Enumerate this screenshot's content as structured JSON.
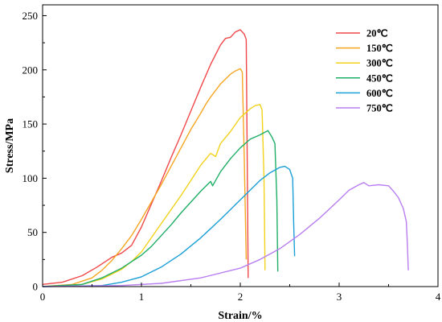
{
  "chart_data": {
    "type": "line",
    "title": "",
    "xlabel": "Strain/%",
    "ylabel": "Stress/MPa",
    "xlim": [
      0,
      4
    ],
    "ylim": [
      0,
      260
    ],
    "x_ticks": [
      0,
      1,
      2,
      3,
      4
    ],
    "x_tick_labels": [
      "0",
      "1",
      "2",
      "3",
      "4"
    ],
    "y_ticks": [
      0,
      50,
      100,
      150,
      200,
      250
    ],
    "y_tick_labels": [
      "0",
      "50",
      "100",
      "150",
      "200",
      "250"
    ],
    "grid": false,
    "legend_position": "top-right",
    "series": [
      {
        "name": "20℃",
        "color": "#f0484a",
        "x": [
          0,
          0.2,
          0.4,
          0.55,
          0.7,
          0.8,
          0.9,
          1.0,
          1.1,
          1.2,
          1.3,
          1.4,
          1.5,
          1.6,
          1.7,
          1.8,
          1.85,
          1.9,
          1.95,
          2.0,
          2.04,
          2.06,
          2.07,
          2.08
        ],
        "values": [
          2,
          4,
          10,
          18,
          27,
          31,
          38,
          55,
          76,
          97,
          119,
          140,
          162,
          184,
          205,
          223,
          229,
          230,
          235,
          237,
          233,
          228,
          120,
          8
        ]
      },
      {
        "name": "150℃",
        "color": "#f5a623",
        "x": [
          0,
          0.3,
          0.5,
          0.6,
          0.7,
          0.8,
          0.9,
          1.0,
          1.1,
          1.2,
          1.3,
          1.4,
          1.5,
          1.6,
          1.65,
          1.7,
          1.8,
          1.9,
          1.95,
          2.0,
          2.02,
          2.04,
          2.06
        ],
        "values": [
          0,
          2,
          8,
          15,
          24,
          35,
          47,
          62,
          78,
          94,
          111,
          128,
          145,
          160,
          168,
          175,
          187,
          196,
          199,
          201,
          198,
          120,
          25
        ]
      },
      {
        "name": "300℃",
        "color": "#f2d21b",
        "x": [
          0,
          0.4,
          0.6,
          0.8,
          0.9,
          1.0,
          1.1,
          1.2,
          1.3,
          1.4,
          1.5,
          1.6,
          1.7,
          1.75,
          1.8,
          1.9,
          2.0,
          2.1,
          2.15,
          2.2,
          2.22,
          2.24,
          2.25
        ],
        "values": [
          0,
          2,
          7,
          16,
          23,
          32,
          45,
          58,
          71,
          84,
          98,
          112,
          123,
          120,
          132,
          143,
          156,
          164,
          167,
          168,
          163,
          100,
          15
        ]
      },
      {
        "name": "450℃",
        "color": "#1fae66",
        "x": [
          0,
          0.4,
          0.6,
          0.8,
          1.0,
          1.1,
          1.2,
          1.3,
          1.4,
          1.5,
          1.6,
          1.7,
          1.72,
          1.8,
          1.9,
          2.0,
          2.1,
          2.2,
          2.28,
          2.32,
          2.35,
          2.37,
          2.38
        ],
        "values": [
          0,
          2,
          8,
          17,
          29,
          37,
          47,
          57,
          68,
          78,
          88,
          97,
          93,
          106,
          118,
          128,
          136,
          140,
          144,
          138,
          132,
          80,
          14
        ]
      },
      {
        "name": "600℃",
        "color": "#1a9fd6",
        "x": [
          0,
          0.6,
          0.8,
          1.0,
          1.2,
          1.4,
          1.6,
          1.8,
          2.0,
          2.2,
          2.3,
          2.4,
          2.45,
          2.5,
          2.53,
          2.54,
          2.55
        ],
        "values": [
          0,
          1,
          4,
          9,
          18,
          30,
          45,
          62,
          80,
          98,
          105,
          110,
          111,
          108,
          100,
          60,
          28
        ]
      },
      {
        "name": "750℃",
        "color": "#b97ef0",
        "x": [
          0,
          0.8,
          1.2,
          1.6,
          2.0,
          2.2,
          2.4,
          2.6,
          2.8,
          3.0,
          3.1,
          3.2,
          3.25,
          3.3,
          3.4,
          3.5,
          3.55,
          3.6,
          3.65,
          3.68,
          3.69,
          3.7
        ],
        "values": [
          0,
          1,
          3,
          8,
          17,
          25,
          35,
          48,
          63,
          80,
          89,
          94,
          96,
          93,
          94,
          93,
          88,
          82,
          72,
          60,
          40,
          15
        ]
      }
    ]
  }
}
